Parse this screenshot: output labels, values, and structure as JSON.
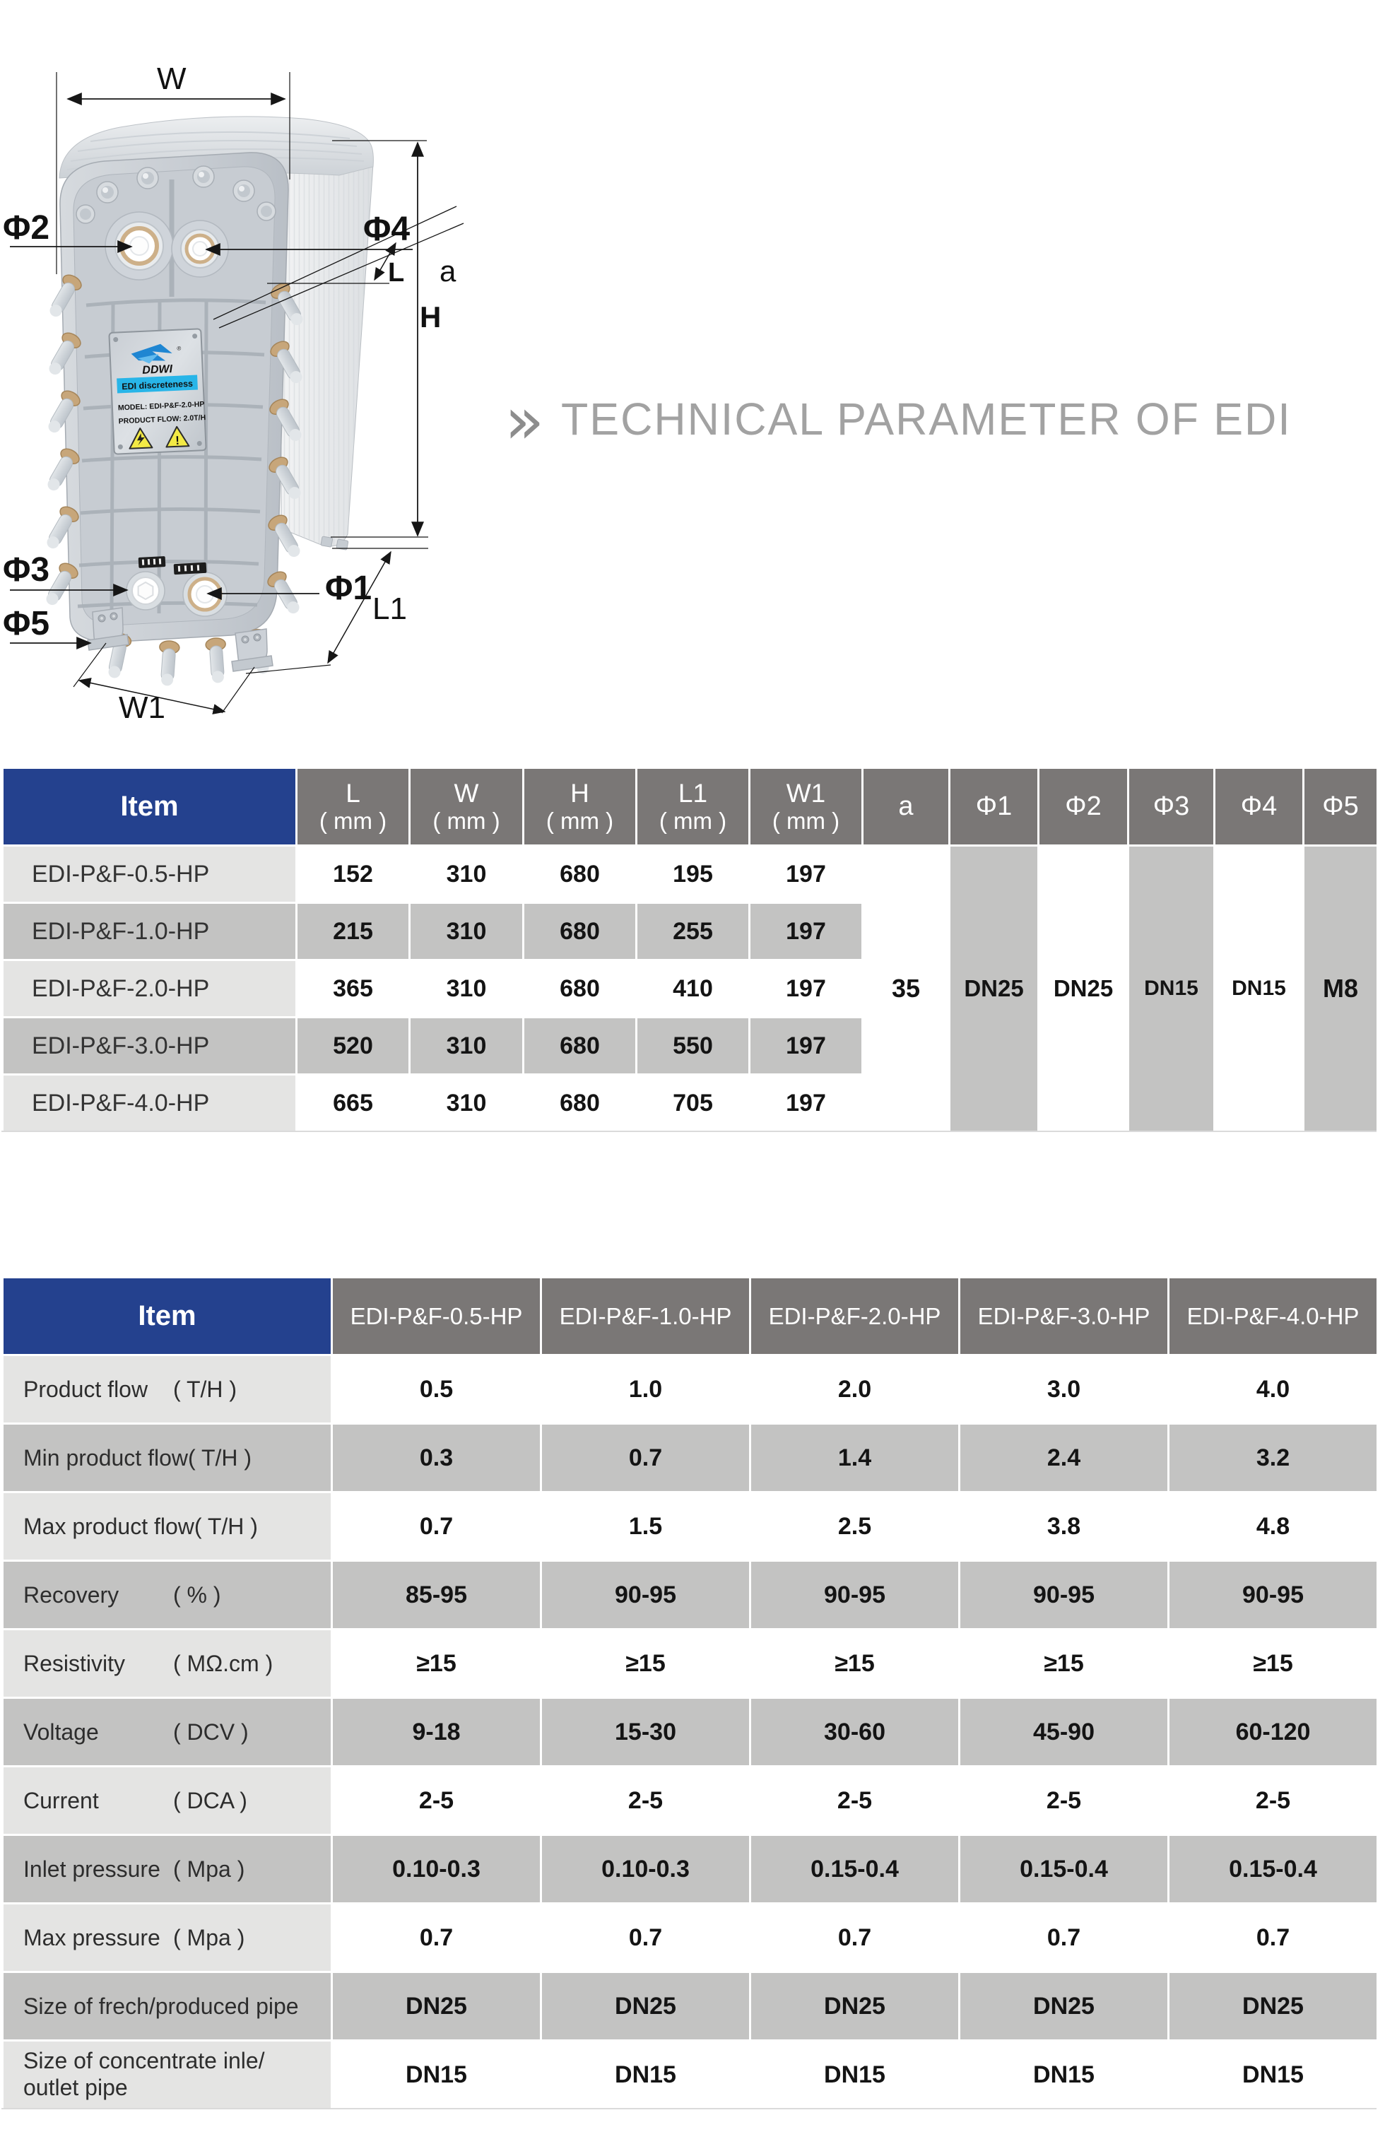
{
  "title": {
    "chevron": "»",
    "text": "TECHNICAL PARAMETER OF EDI"
  },
  "drawing": {
    "dims": {
      "w": "W",
      "h": "H",
      "l": "L",
      "l1": "L1",
      "w1": "W1",
      "a": "a",
      "phi1": "Φ1",
      "phi2": "Φ2",
      "phi3": "Φ3",
      "phi4": "Φ4",
      "phi5": "Φ5"
    },
    "nameplate": {
      "brand": "DDWI",
      "reg": "®",
      "banner": "EDI discreteness",
      "model": "MODEL:  EDI-P&F-2.0-HP",
      "flow": "PRODUCT FLOW:  2.0T/H",
      "warn2": "!"
    }
  },
  "table1": {
    "item_header": "Item",
    "dim_headers": [
      {
        "name": "L",
        "unit": "( mm )"
      },
      {
        "name": "W",
        "unit": "( mm )"
      },
      {
        "name": "H",
        "unit": "( mm )"
      },
      {
        "name": "L1",
        "unit": "( mm )"
      },
      {
        "name": "W1",
        "unit": "( mm )"
      }
    ],
    "spec_headers": [
      "a",
      "Φ1",
      "Φ2",
      "Φ3",
      "Φ4",
      "Φ5"
    ],
    "rows": [
      {
        "item": "EDI-P&F-0.5-HP",
        "values": [
          "152",
          "310",
          "680",
          "195",
          "197"
        ]
      },
      {
        "item": "EDI-P&F-1.0-HP",
        "values": [
          "215",
          "310",
          "680",
          "255",
          "197"
        ]
      },
      {
        "item": "EDI-P&F-2.0-HP",
        "values": [
          "365",
          "310",
          "680",
          "410",
          "197"
        ]
      },
      {
        "item": "EDI-P&F-3.0-HP",
        "values": [
          "520",
          "310",
          "680",
          "550",
          "197"
        ]
      },
      {
        "item": "EDI-P&F-4.0-HP",
        "values": [
          "665",
          "310",
          "680",
          "705",
          "197"
        ]
      }
    ],
    "merged_values": [
      "35",
      "DN25",
      "DN25",
      "DN15",
      "DN15",
      "M8"
    ]
  },
  "table2": {
    "item_header": "Item",
    "model_headers": [
      "EDI-P&F-0.5-HP",
      "EDI-P&F-1.0-HP",
      "EDI-P&F-2.0-HP",
      "EDI-P&F-3.0-HP",
      "EDI-P&F-4.0-HP"
    ],
    "rows": [
      {
        "label": "Product flow",
        "unit": "( T/H )",
        "values": [
          "0.5",
          "1.0",
          "2.0",
          "3.0",
          "4.0"
        ]
      },
      {
        "label": "Min product flow",
        "unit": "( T/H )",
        "values": [
          "0.3",
          "0.7",
          "1.4",
          "2.4",
          "3.2"
        ]
      },
      {
        "label": "Max product flow",
        "unit": "( T/H )",
        "values": [
          "0.7",
          "1.5",
          "2.5",
          "3.8",
          "4.8"
        ]
      },
      {
        "label": "Recovery",
        "unit": "( % )",
        "values": [
          "85-95",
          "90-95",
          "90-95",
          "90-95",
          "90-95"
        ]
      },
      {
        "label": "Resistivity",
        "unit": "( MΩ.cm )",
        "values": [
          "≥15",
          "≥15",
          "≥15",
          "≥15",
          "≥15"
        ]
      },
      {
        "label": "Voltage",
        "unit": "( DCV )",
        "values": [
          "9-18",
          "15-30",
          "30-60",
          "45-90",
          "60-120"
        ]
      },
      {
        "label": "Current",
        "unit": "( DCA )",
        "values": [
          "2-5",
          "2-5",
          "2-5",
          "2-5",
          "2-5"
        ]
      },
      {
        "label": "Inlet pressure",
        "unit": "( Mpa )",
        "values": [
          "0.10-0.3",
          "0.10-0.3",
          "0.15-0.4",
          "0.15-0.4",
          "0.15-0.4"
        ]
      },
      {
        "label": "Max pressure",
        "unit": "( Mpa )",
        "values": [
          "0.7",
          "0.7",
          "0.7",
          "0.7",
          "0.7"
        ]
      },
      {
        "label": "Size of frech/produced pipe",
        "unit": "",
        "values": [
          "DN25",
          "DN25",
          "DN25",
          "DN25",
          "DN25"
        ]
      },
      {
        "label": "Size of concentrate inle/ outlet pipe",
        "unit": "",
        "values": [
          "DN15",
          "DN15",
          "DN15",
          "DN15",
          "DN15"
        ]
      }
    ]
  },
  "colors": {
    "header_blue": "#24418e",
    "header_gray": "#7a7776",
    "row_light": "#e4e4e3",
    "row_gray": "#c3c3c2",
    "title_gray": "#a2a2a2",
    "banner_cyan": "#28b5e8",
    "logo_blue": "#1a6ec4",
    "warning_yellow": "#f3ea45"
  }
}
